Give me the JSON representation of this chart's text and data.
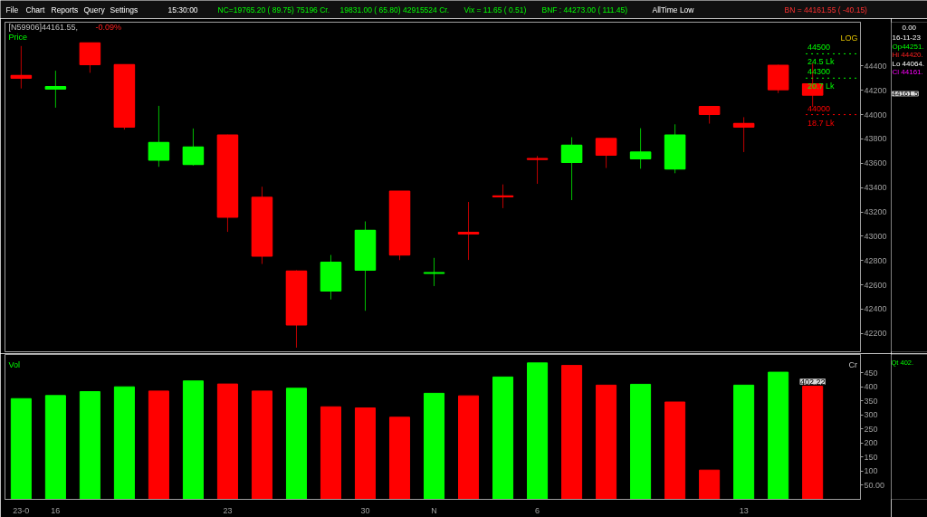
{
  "chart_data": [
    {
      "type": "candlestick",
      "title": "[N59906]44161.55,",
      "subtitle": "-0.09%",
      "ylabel": "Price",
      "categories": [
        null,
        null,
        null,
        null,
        null,
        null,
        null,
        null,
        null,
        null,
        null,
        null,
        null,
        null,
        null,
        null,
        null,
        null,
        null,
        null,
        null,
        null,
        null,
        null
      ],
      "ohlc": [
        [
          44320,
          44564,
          44215,
          44300
        ],
        [
          44210,
          44361,
          44057,
          44230
        ],
        [
          44588,
          44590,
          44344,
          44412
        ],
        [
          44410,
          44410,
          43877,
          43898
        ],
        [
          43627,
          44072,
          43571,
          43769
        ],
        [
          43591,
          43886,
          43581,
          43732
        ],
        [
          43831,
          43835,
          43036,
          43158
        ],
        [
          43319,
          43407,
          42772,
          42837
        ],
        [
          42712,
          42720,
          42084,
          42271
        ],
        [
          42551,
          42846,
          42480,
          42785
        ],
        [
          42722,
          43122,
          42387,
          43048
        ],
        [
          43370,
          43370,
          42804,
          42846
        ],
        [
          42695,
          42822,
          42590,
          42700
        ],
        [
          43030,
          43282,
          42805,
          43020
        ],
        [
          43330,
          43426,
          43231,
          43325
        ],
        [
          43637,
          43660,
          43431,
          43632
        ],
        [
          43608,
          43814,
          43297,
          43748
        ],
        [
          43804,
          43806,
          43561,
          43667
        ],
        [
          43637,
          43888,
          43555,
          43692
        ],
        [
          43553,
          43920,
          43518,
          43832
        ],
        [
          44065,
          44065,
          43926,
          44002
        ],
        [
          43926,
          43979,
          43692,
          43898
        ],
        [
          44405,
          44410,
          44177,
          44205
        ],
        [
          44251,
          44420,
          44064,
          44161
        ]
      ],
      "colors": [
        "#ff0000",
        "#00ff00",
        "#ff0000",
        "#ff0000",
        "#00ff00",
        "#00ff00",
        "#ff0000",
        "#ff0000",
        "#ff0000",
        "#00ff00",
        "#00ff00",
        "#ff0000",
        "#00ff00",
        "#ff0000",
        "#ff0000",
        "#ff0000",
        "#00ff00",
        "#ff0000",
        "#00ff00",
        "#00ff00",
        "#ff0000",
        "#ff0000",
        "#ff0000",
        "#ff0000"
      ],
      "ylim": [
        42050,
        44760
      ],
      "yticks": [
        42200,
        42400,
        42600,
        42800,
        43000,
        43200,
        43400,
        43600,
        43800,
        44000,
        44200,
        44400
      ],
      "tick_labels": "y",
      "ref_lines": [
        {
          "axis": "y",
          "value": 44500,
          "label": "24.5 Lk",
          "color": "#00ff00",
          "line_style": "dotted"
        },
        {
          "axis": "y",
          "value": 44300,
          "label": "20.7 Lk",
          "color": "#00ff00",
          "line_style": "dotted"
        },
        {
          "axis": "y",
          "value": 44000,
          "label": "18.7 Lk",
          "color": "#ff0000",
          "line_style": "dotted"
        }
      ],
      "annotations": [
        "File",
        "Chart",
        "Reports",
        "Query",
        "Settings",
        "15:30:00",
        "NC=19765.20 ( 89.75) 75196 Cr.",
        "19831.00 ( 65.80) 42915524 Cr.",
        "Vix =   11.65 ( 0.51)",
        "BNF : 44273.00 ( 111.45)",
        "AllTime Low",
        "BN = 44161.55 ( -40.15)",
        "LOG",
        "44161.5",
        "0.00",
        "16-11-23",
        "Op44251.",
        "Hi 44420.",
        "Lo 44064.",
        "Cl 44161.",
        {
          "text": "44500",
          "y": 44500
        },
        {
          "text": "44300",
          "y": 44300
        },
        {
          "text": "44000",
          "y": 44000
        }
      ]
    },
    {
      "type": "bar",
      "title": "Vol",
      "categories": [
        "23-0",
        "16",
        null,
        null,
        null,
        null,
        "23",
        null,
        null,
        null,
        "30",
        null,
        "N",
        null,
        null,
        "6",
        null,
        null,
        null,
        null,
        null,
        "13",
        null,
        null
      ],
      "values": [
        358,
        369,
        383,
        400,
        385,
        421,
        410,
        385,
        395,
        329,
        325,
        292,
        377,
        368,
        435,
        485,
        476,
        406,
        409,
        346,
        104,
        406,
        452,
        402.22
      ],
      "colors": [
        "#00ff00",
        "#00ff00",
        "#00ff00",
        "#00ff00",
        "#ff0000",
        "#00ff00",
        "#ff0000",
        "#ff0000",
        "#00ff00",
        "#ff0000",
        "#ff0000",
        "#ff0000",
        "#00ff00",
        "#ff0000",
        "#00ff00",
        "#00ff00",
        "#ff0000",
        "#ff0000",
        "#00ff00",
        "#ff0000",
        "#ff0000",
        "#00ff00",
        "#00ff00",
        "#ff0000"
      ],
      "value_labels": [
        null,
        null,
        null,
        null,
        null,
        null,
        null,
        null,
        null,
        null,
        null,
        null,
        null,
        null,
        null,
        null,
        null,
        null,
        null,
        null,
        null,
        null,
        null,
        "402.22"
      ],
      "ylim": [
        0,
        515
      ],
      "yticks": [
        {
          "value": 50,
          "label": "50.00"
        },
        100,
        150,
        200,
        250,
        300,
        350,
        400,
        450
      ],
      "annotations": [
        "Cr",
        "Qt    402."
      ]
    }
  ]
}
